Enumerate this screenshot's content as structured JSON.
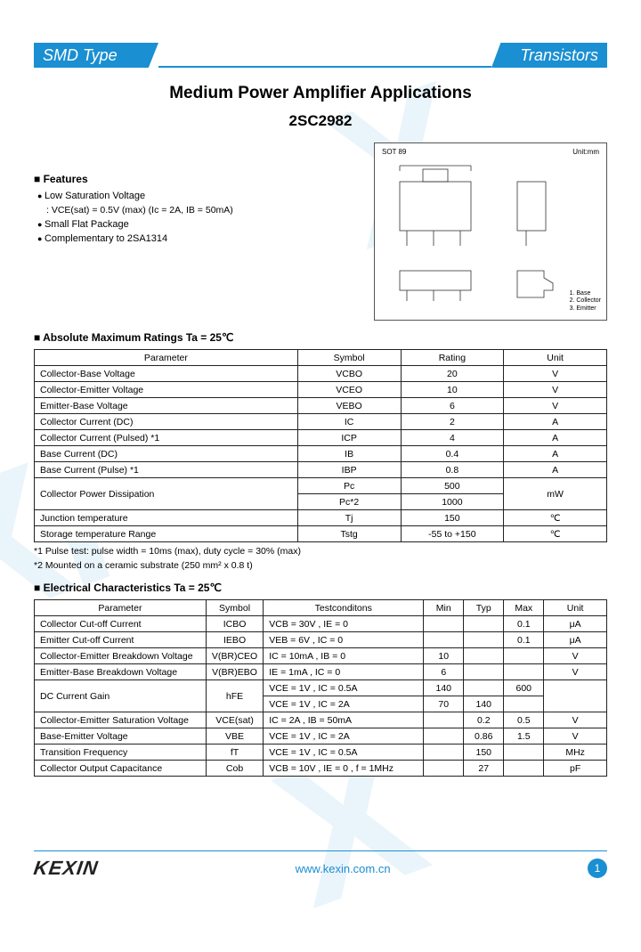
{
  "header": {
    "left": "SMD Type",
    "right": "Transistors"
  },
  "title": {
    "main": "Medium Power Amplifier Applications",
    "part": "2SC2982"
  },
  "features": {
    "heading": "Features",
    "items": [
      {
        "text": "Low Saturation Voltage",
        "sub": ": VCE(sat) = 0.5V (max) (Ic = 2A, IB = 50mA)"
      },
      {
        "text": "Small Flat Package"
      },
      {
        "text": "Complementary to 2SA1314"
      }
    ]
  },
  "package": {
    "name": "SOT 89",
    "unit": "Unit:mm",
    "pins": "1. Base\n2. Collector\n3. Emitter"
  },
  "abs_max": {
    "heading": "Absolute Maximum Ratings Ta = 25℃",
    "columns": [
      "Parameter",
      "Symbol",
      "Rating",
      "Unit"
    ],
    "rows": [
      [
        "Collector-Base Voltage",
        "VCBO",
        "20",
        "V"
      ],
      [
        "Collector-Emitter Voltage",
        "VCEO",
        "10",
        "V"
      ],
      [
        "Emitter-Base Voltage",
        "VEBO",
        "6",
        "V"
      ],
      [
        "Collector Current (DC)",
        "IC",
        "2",
        "A"
      ],
      [
        "Collector Current (Pulsed) *1",
        "ICP",
        "4",
        "A"
      ],
      [
        "Base Current (DC)",
        "IB",
        "0.4",
        "A"
      ],
      [
        "Base Current (Pulse) *1",
        "IBP",
        "0.8",
        "A"
      ]
    ],
    "pd_row": {
      "label": "Collector Power Dissipation",
      "s1": "Pc",
      "r1": "500",
      "s2": "Pc*2",
      "r2": "1000",
      "unit": "mW"
    },
    "rows2": [
      [
        "Junction temperature",
        "Tj",
        "150",
        "℃"
      ],
      [
        "Storage temperature Range",
        "Tstg",
        "-55 to +150",
        "℃"
      ]
    ],
    "footnotes": [
      "*1 Pulse test: pulse width = 10ms (max), duty cycle = 30% (max)",
      "*2 Mounted on a ceramic substrate (250 mm² x 0.8 t)"
    ]
  },
  "elec": {
    "heading": "Electrical Characteristics Ta = 25℃",
    "columns": [
      "Parameter",
      "Symbol",
      "Testconditons",
      "Min",
      "Typ",
      "Max",
      "Unit"
    ],
    "rows": [
      [
        "Collector Cut-off Current",
        "ICBO",
        "VCB = 30V , IE = 0",
        "",
        "",
        "0.1",
        "μA"
      ],
      [
        "Emitter Cut-off Current",
        "IEBO",
        "VEB = 6V , IC = 0",
        "",
        "",
        "0.1",
        "μA"
      ],
      [
        "Collector-Emitter Breakdown Voltage",
        "V(BR)CEO",
        "IC = 10mA , IB = 0",
        "10",
        "",
        "",
        "V"
      ],
      [
        "Emitter-Base Breakdown Voltage",
        "V(BR)EBO",
        "IE = 1mA , IC = 0",
        "6",
        "",
        "",
        "V"
      ]
    ],
    "hfe_row": {
      "label": "DC Current Gain",
      "symbol": "hFE",
      "c1": "VCE = 1V , IC = 0.5A",
      "min1": "140",
      "typ1": "",
      "max1": "600",
      "c2": "VCE = 1V , IC = 2A",
      "min2": "70",
      "typ2": "140",
      "max2": ""
    },
    "rows2": [
      [
        "Collector-Emitter Saturation Voltage",
        "VCE(sat)",
        "IC = 2A , IB = 50mA",
        "",
        "0.2",
        "0.5",
        "V"
      ],
      [
        "Base-Emitter Voltage",
        "VBE",
        "VCE = 1V , IC = 2A",
        "",
        "0.86",
        "1.5",
        "V"
      ],
      [
        "Transition Frequency",
        "fT",
        "VCE = 1V , IC = 0.5A",
        "",
        "150",
        "",
        "MHz"
      ],
      [
        "Collector Output Capacitance",
        "Cob",
        "VCB = 10V , IE = 0 , f = 1MHz",
        "",
        "27",
        "",
        "pF"
      ]
    ]
  },
  "footer": {
    "logo": "KEXIN",
    "url": "www.kexin.com.cn",
    "page": "1"
  },
  "colors": {
    "accent": "#1a8fd1",
    "border": "#222222",
    "watermark": "#eaf4fb"
  },
  "col_widths": {
    "abs_max": [
      "46%",
      "18%",
      "18%",
      "18%"
    ],
    "elec": [
      "30%",
      "10%",
      "28%",
      "7%",
      "7%",
      "7%",
      "11%"
    ]
  }
}
